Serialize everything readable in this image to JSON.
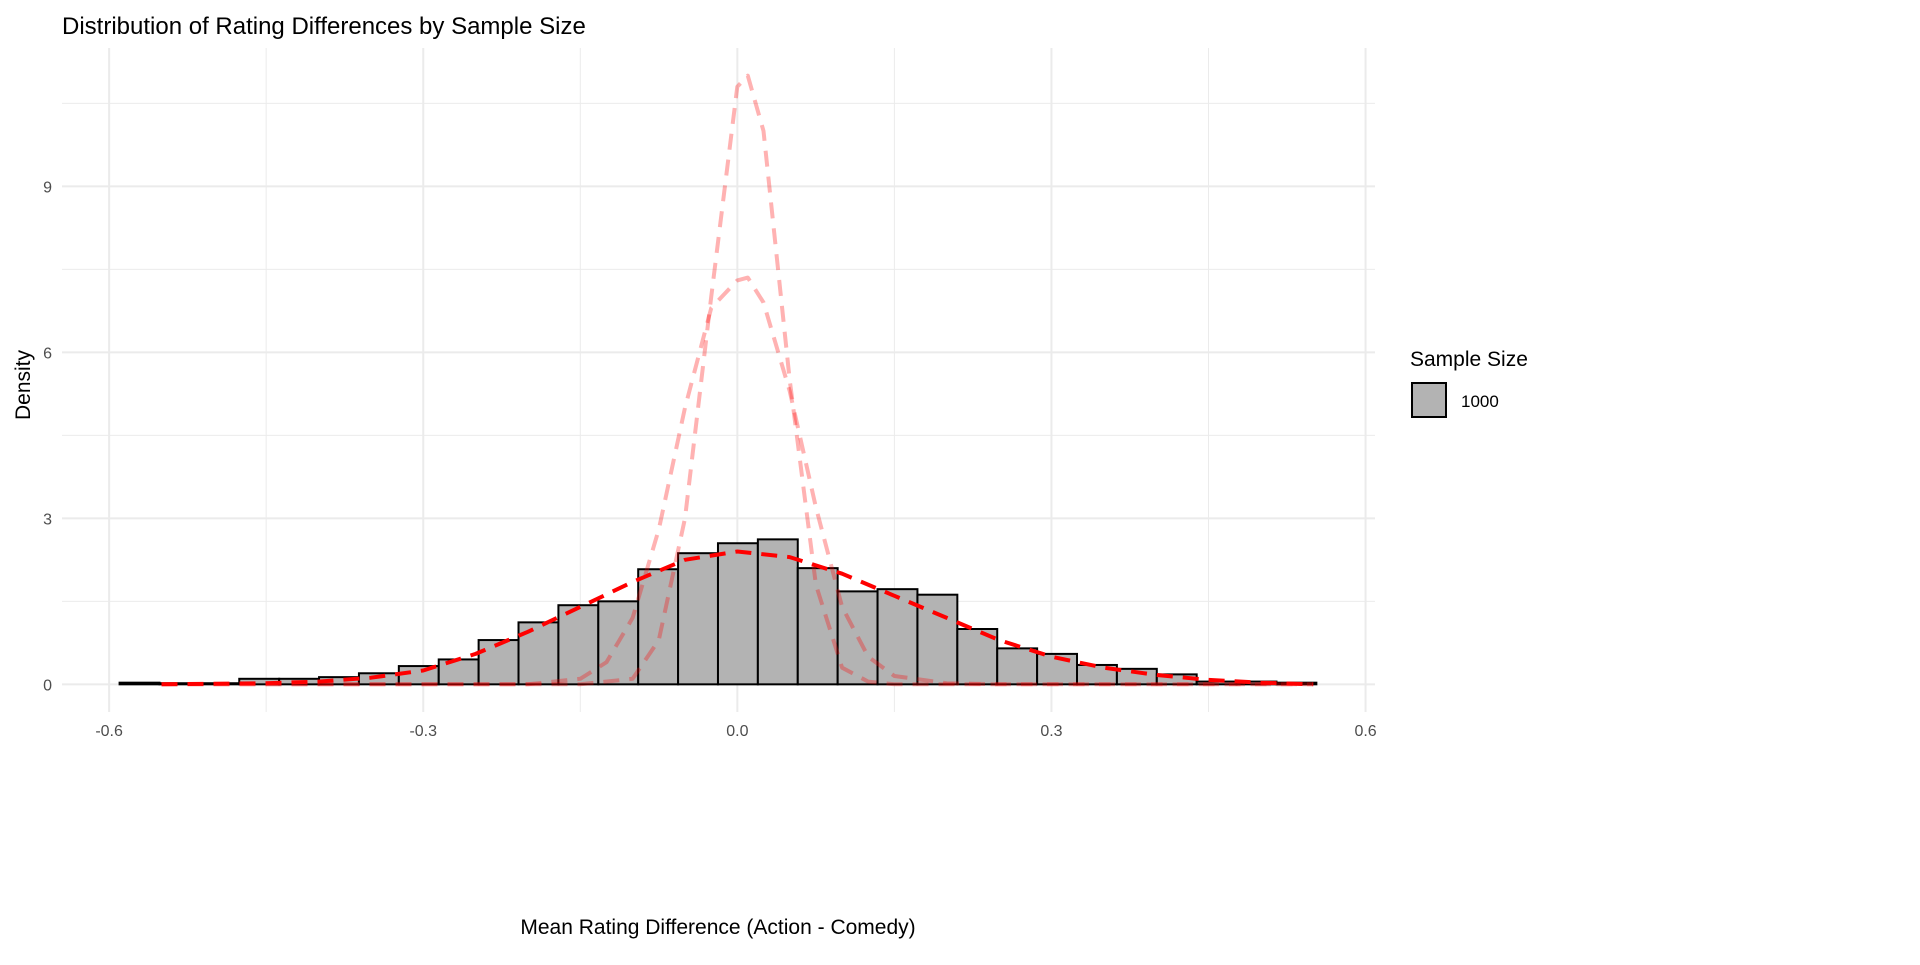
{
  "chart_data": {
    "type": "bar",
    "title": "Distribution of Rating Differences by Sample Size",
    "xlabel": "Mean Rating Difference (Action - Comedy)",
    "ylabel": "Density",
    "xlim": [
      -0.645,
      0.609
    ],
    "ylim": [
      -0.5,
      11.5
    ],
    "x_ticks": [
      -0.6,
      -0.3,
      0.0,
      0.3,
      0.6
    ],
    "x_tick_labels": [
      "-0.6",
      "-0.3",
      "0.0",
      "0.3",
      "0.6"
    ],
    "y_ticks": [
      0,
      3,
      6,
      9
    ],
    "y_tick_labels": [
      "0",
      "3",
      "6",
      "9"
    ],
    "grid": true,
    "legend": {
      "title": "Sample Size",
      "entries": [
        "1000"
      ],
      "placement": "right"
    },
    "colors": {
      "bar_fill": "#b3b3b3",
      "bar_stroke": "#000000",
      "density": "#ff0000",
      "density_faded": "#ff9999",
      "grid": "#ebebeb"
    },
    "histogram": {
      "bin_start": -0.59,
      "bin_width": 0.0381,
      "values": [
        0.03,
        0.02,
        0.02,
        0.1,
        0.1,
        0.13,
        0.2,
        0.33,
        0.45,
        0.8,
        1.12,
        1.43,
        1.5,
        2.08,
        2.37,
        2.55,
        2.62,
        2.1,
        1.68,
        1.72,
        1.62,
        1.0,
        0.65,
        0.55,
        0.35,
        0.28,
        0.18,
        0.05,
        0.05,
        0.03
      ]
    },
    "density_curves": [
      {
        "style": "bold",
        "x": [
          -0.55,
          -0.45,
          -0.4,
          -0.35,
          -0.3,
          -0.25,
          -0.2,
          -0.15,
          -0.1,
          -0.05,
          0,
          0.05,
          0.1,
          0.15,
          0.2,
          0.25,
          0.3,
          0.35,
          0.4,
          0.45,
          0.5,
          0.55
        ],
        "y": [
          0,
          0.02,
          0.05,
          0.12,
          0.25,
          0.55,
          0.95,
          1.4,
          1.85,
          2.25,
          2.4,
          2.3,
          2.0,
          1.6,
          1.2,
          0.8,
          0.5,
          0.3,
          0.17,
          0.08,
          0.03,
          0
        ]
      },
      {
        "style": "faded",
        "x": [
          -0.55,
          -0.2,
          -0.15,
          -0.125,
          -0.1,
          -0.075,
          -0.05,
          -0.025,
          0,
          0.01,
          0.025,
          0.05,
          0.075,
          0.1,
          0.125,
          0.15,
          0.2,
          0.25,
          0.55
        ],
        "y": [
          0,
          0,
          0.1,
          0.4,
          1.2,
          2.8,
          5.0,
          6.8,
          7.3,
          7.35,
          6.9,
          5.3,
          3.2,
          1.4,
          0.5,
          0.15,
          0.02,
          0,
          0
        ]
      },
      {
        "style": "faded",
        "x": [
          -0.55,
          -0.15,
          -0.1,
          -0.075,
          -0.05,
          -0.025,
          0,
          0.01,
          0.025,
          0.05,
          0.075,
          0.1,
          0.125,
          0.15,
          0.55
        ],
        "y": [
          0,
          0,
          0.1,
          0.8,
          3.0,
          7.0,
          10.8,
          11.0,
          10.0,
          5.5,
          1.8,
          0.3,
          0.05,
          0,
          0
        ]
      }
    ]
  }
}
